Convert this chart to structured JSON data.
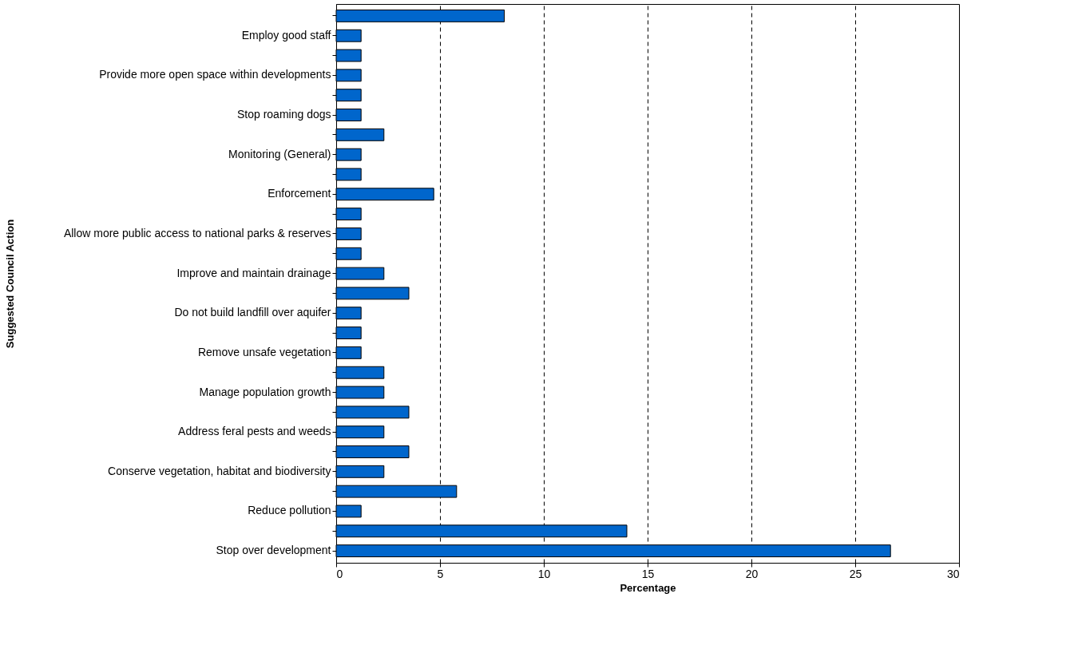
{
  "chart_data": {
    "type": "bar",
    "orientation": "horizontal",
    "xlabel": "Percentage",
    "ylabel": "Suggested Council Action",
    "categories": [
      null,
      "Employ good staff",
      null,
      "Provide more open space within developments",
      null,
      "Stop roaming dogs",
      null,
      "Monitoring (General)",
      null,
      "Enforcement",
      null,
      "Allow more public access to national parks & reserves",
      null,
      "Improve and maintain drainage",
      null,
      "Do not build landfill over aquifer",
      null,
      "Remove unsafe vegetation",
      null,
      "Manage population growth",
      null,
      "Address feral pests and weeds",
      null,
      "Conserve vegetation, habitat and biodiversity",
      null,
      "Reduce pollution",
      null,
      "Stop over development"
    ],
    "values": [
      8.1,
      1.2,
      1.2,
      1.2,
      1.2,
      1.2,
      2.3,
      1.2,
      1.2,
      4.7,
      1.2,
      1.2,
      1.2,
      2.3,
      3.5,
      1.2,
      1.2,
      1.2,
      2.3,
      2.3,
      3.5,
      2.3,
      3.5,
      2.3,
      5.8,
      1.2,
      14.0,
      26.7
    ],
    "color": "#0066cc",
    "xlim": [
      0,
      30
    ],
    "xticks": [
      0,
      5,
      10,
      15,
      20,
      25,
      30
    ],
    "grid": "x"
  }
}
